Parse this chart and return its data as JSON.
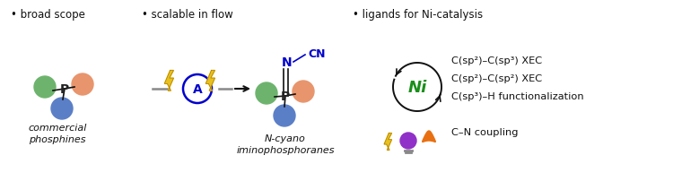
{
  "bg_color": "#ffffff",
  "bullet1": "• broad scope",
  "bullet2": "• scalable in flow",
  "bullet3": "• ligands for Ni-catalysis",
  "label_phosphines": "commercial\nphosphines",
  "label_imino": "N-cyano\niminophosphoranes",
  "line1": "C(sp²)–C(sp³) XEC",
  "line2": "C(sp²)–C(sp²) XEC",
  "line3": "C(sp³)–H functionalization",
  "line4": "C–N coupling",
  "green_color": "#6db36d",
  "orange_color": "#e8956d",
  "blue_color": "#5b7fc7",
  "ni_green": "#1a8f1a",
  "lightning_yellow": "#e8c020",
  "lightning_outline": "#b08000",
  "bulb_purple": "#9030c8",
  "bulb_gray": "#888888",
  "flame_orange": "#e87010",
  "n_blue": "#0000cc",
  "a_blue": "#0000cc",
  "p_color": "#222222",
  "arrow_gray": "#888888",
  "black": "#111111"
}
